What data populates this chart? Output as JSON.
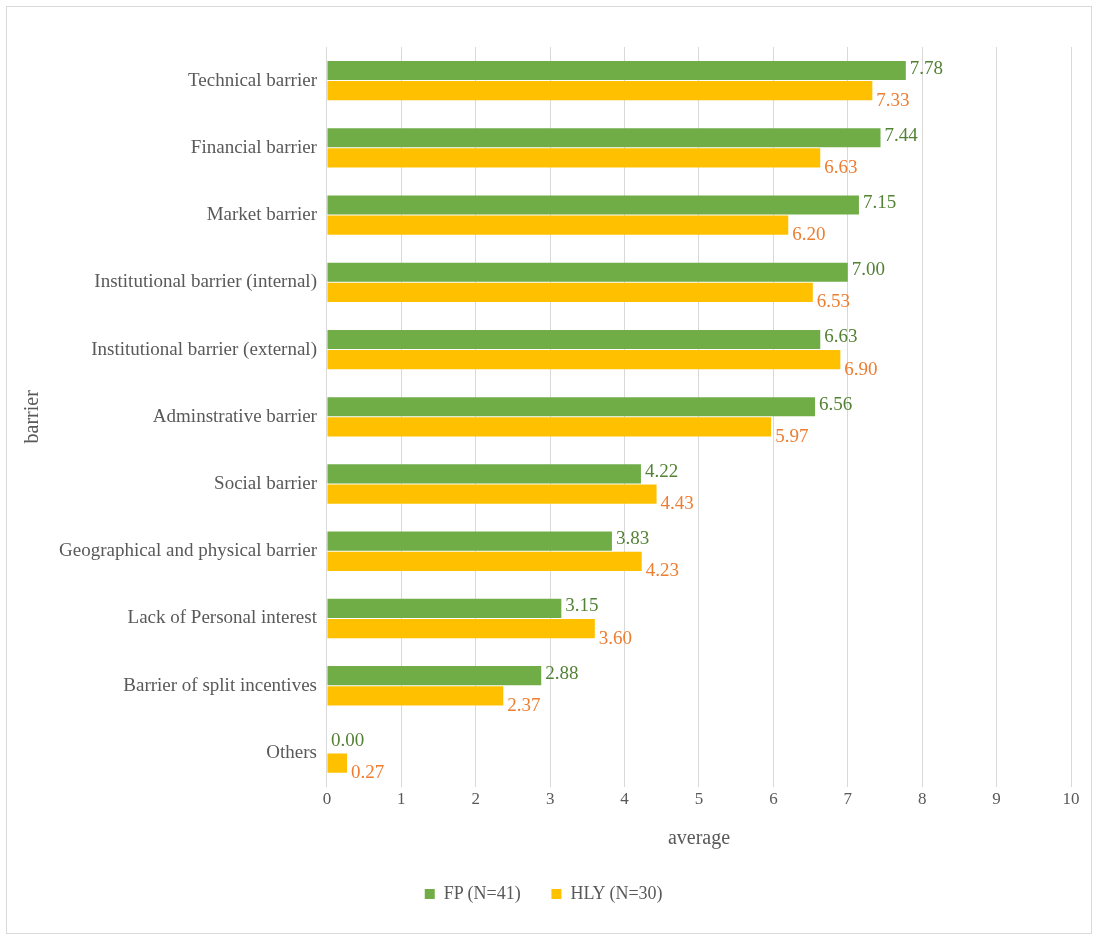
{
  "chart_data": {
    "type": "bar",
    "orientation": "horizontal",
    "xlabel": "average",
    "ylabel": "barrier",
    "categories": [
      "Technical barrier",
      "Financial barrier",
      "Market barrier",
      "Institutional barrier (internal)",
      "Institutional barrier (external)",
      "Adminstrative barrier",
      "Social barrier",
      "Geographical and physical barrier",
      "Lack of Personal interest",
      "Barrier of split incentives",
      "Others"
    ],
    "series": [
      {
        "name": "FP (N=41)",
        "color": "#70ad47",
        "values": [
          7.78,
          7.44,
          7.15,
          7.0,
          6.63,
          6.56,
          4.22,
          3.83,
          3.15,
          2.88,
          0.0
        ],
        "value_labels": [
          "7.78",
          "7.44",
          "7.15",
          "7.00",
          "6.63",
          "6.56",
          "4.22",
          "3.83",
          "3.15",
          "2.88",
          "0.00"
        ]
      },
      {
        "name": "HLY (N=30)",
        "color": "#ffc000",
        "values": [
          7.33,
          6.63,
          6.2,
          6.53,
          6.9,
          5.97,
          4.43,
          4.23,
          3.6,
          2.37,
          0.27
        ],
        "value_labels": [
          "7.33",
          "6.63",
          "6.20",
          "6.53",
          "6.90",
          "5.97",
          "4.43",
          "4.23",
          "3.60",
          "2.37",
          "0.27"
        ]
      }
    ],
    "xlim": [
      0,
      10
    ],
    "xticks": [
      0,
      1,
      2,
      3,
      4,
      5,
      6,
      7,
      8,
      9,
      10
    ],
    "grid": "x",
    "legend": "bottom"
  }
}
